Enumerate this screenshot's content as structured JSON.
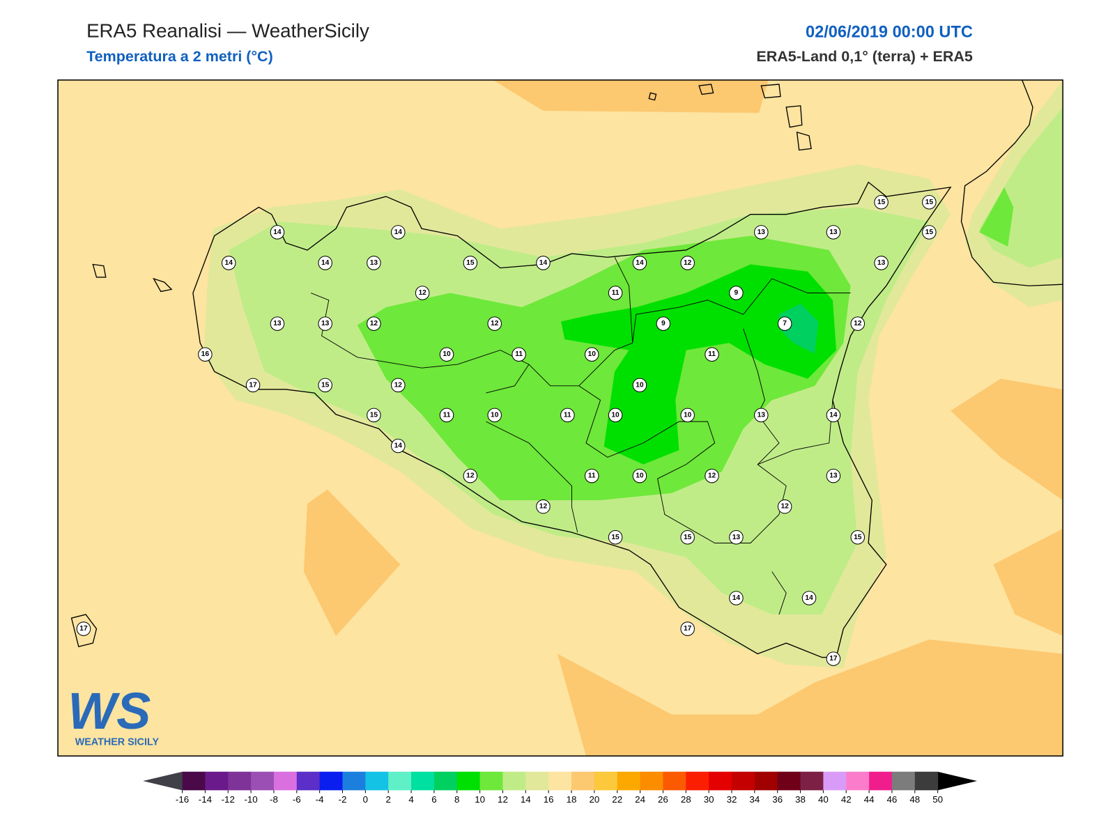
{
  "header": {
    "title": "ERA5 Reanalisi — WeatherSicily",
    "subtitle": "Temperatura a 2 metri (°C)",
    "date": "02/06/2019 00:00 UTC",
    "source": "ERA5-Land 0,1° (terra) + ERA5"
  },
  "station_values": [
    14,
    14,
    14,
    14,
    13,
    15,
    14,
    14,
    12,
    13,
    13,
    15,
    15,
    15,
    13,
    12,
    11,
    9,
    13,
    13,
    12,
    12,
    9,
    7,
    12,
    16,
    10,
    11,
    10,
    11,
    17,
    15,
    12,
    10,
    15,
    11,
    10,
    11,
    10,
    10,
    13,
    14,
    14,
    12,
    11,
    10,
    12,
    13,
    12,
    12,
    15,
    15,
    13,
    15,
    14,
    14,
    17,
    17,
    17
  ],
  "colorbar": {
    "ticks": [
      -16,
      -14,
      -12,
      -10,
      -8,
      -6,
      -4,
      -2,
      0,
      2,
      4,
      6,
      8,
      10,
      12,
      14,
      16,
      18,
      20,
      22,
      24,
      26,
      28,
      30,
      32,
      34,
      36,
      38,
      40,
      42,
      44,
      46,
      48,
      50
    ],
    "colors": [
      "#4a0a4a",
      "#6a1a8a",
      "#7e3398",
      "#9b4fb4",
      "#da70e0",
      "#5b2fc8",
      "#0a1ef0",
      "#1c7fdd",
      "#14c2e6",
      "#5ff0c8",
      "#00e0a0",
      "#00d060",
      "#00e000",
      "#6ee83a",
      "#c0ec88",
      "#e2e89a",
      "#fde4a0",
      "#fcc870",
      "#fcc83c",
      "#fca800",
      "#fc8c00",
      "#fc5a00",
      "#fc1e00",
      "#e40000",
      "#c40000",
      "#a00000",
      "#700018",
      "#7c2046",
      "#d89cf8",
      "#fc7ccc",
      "#f01e8c",
      "#7c7c7c",
      "#3c3c3c"
    ],
    "under_color": "#404048",
    "over_color": "#000000"
  },
  "logo": {
    "mark": "WS",
    "text": "WEATHER SICILY"
  }
}
